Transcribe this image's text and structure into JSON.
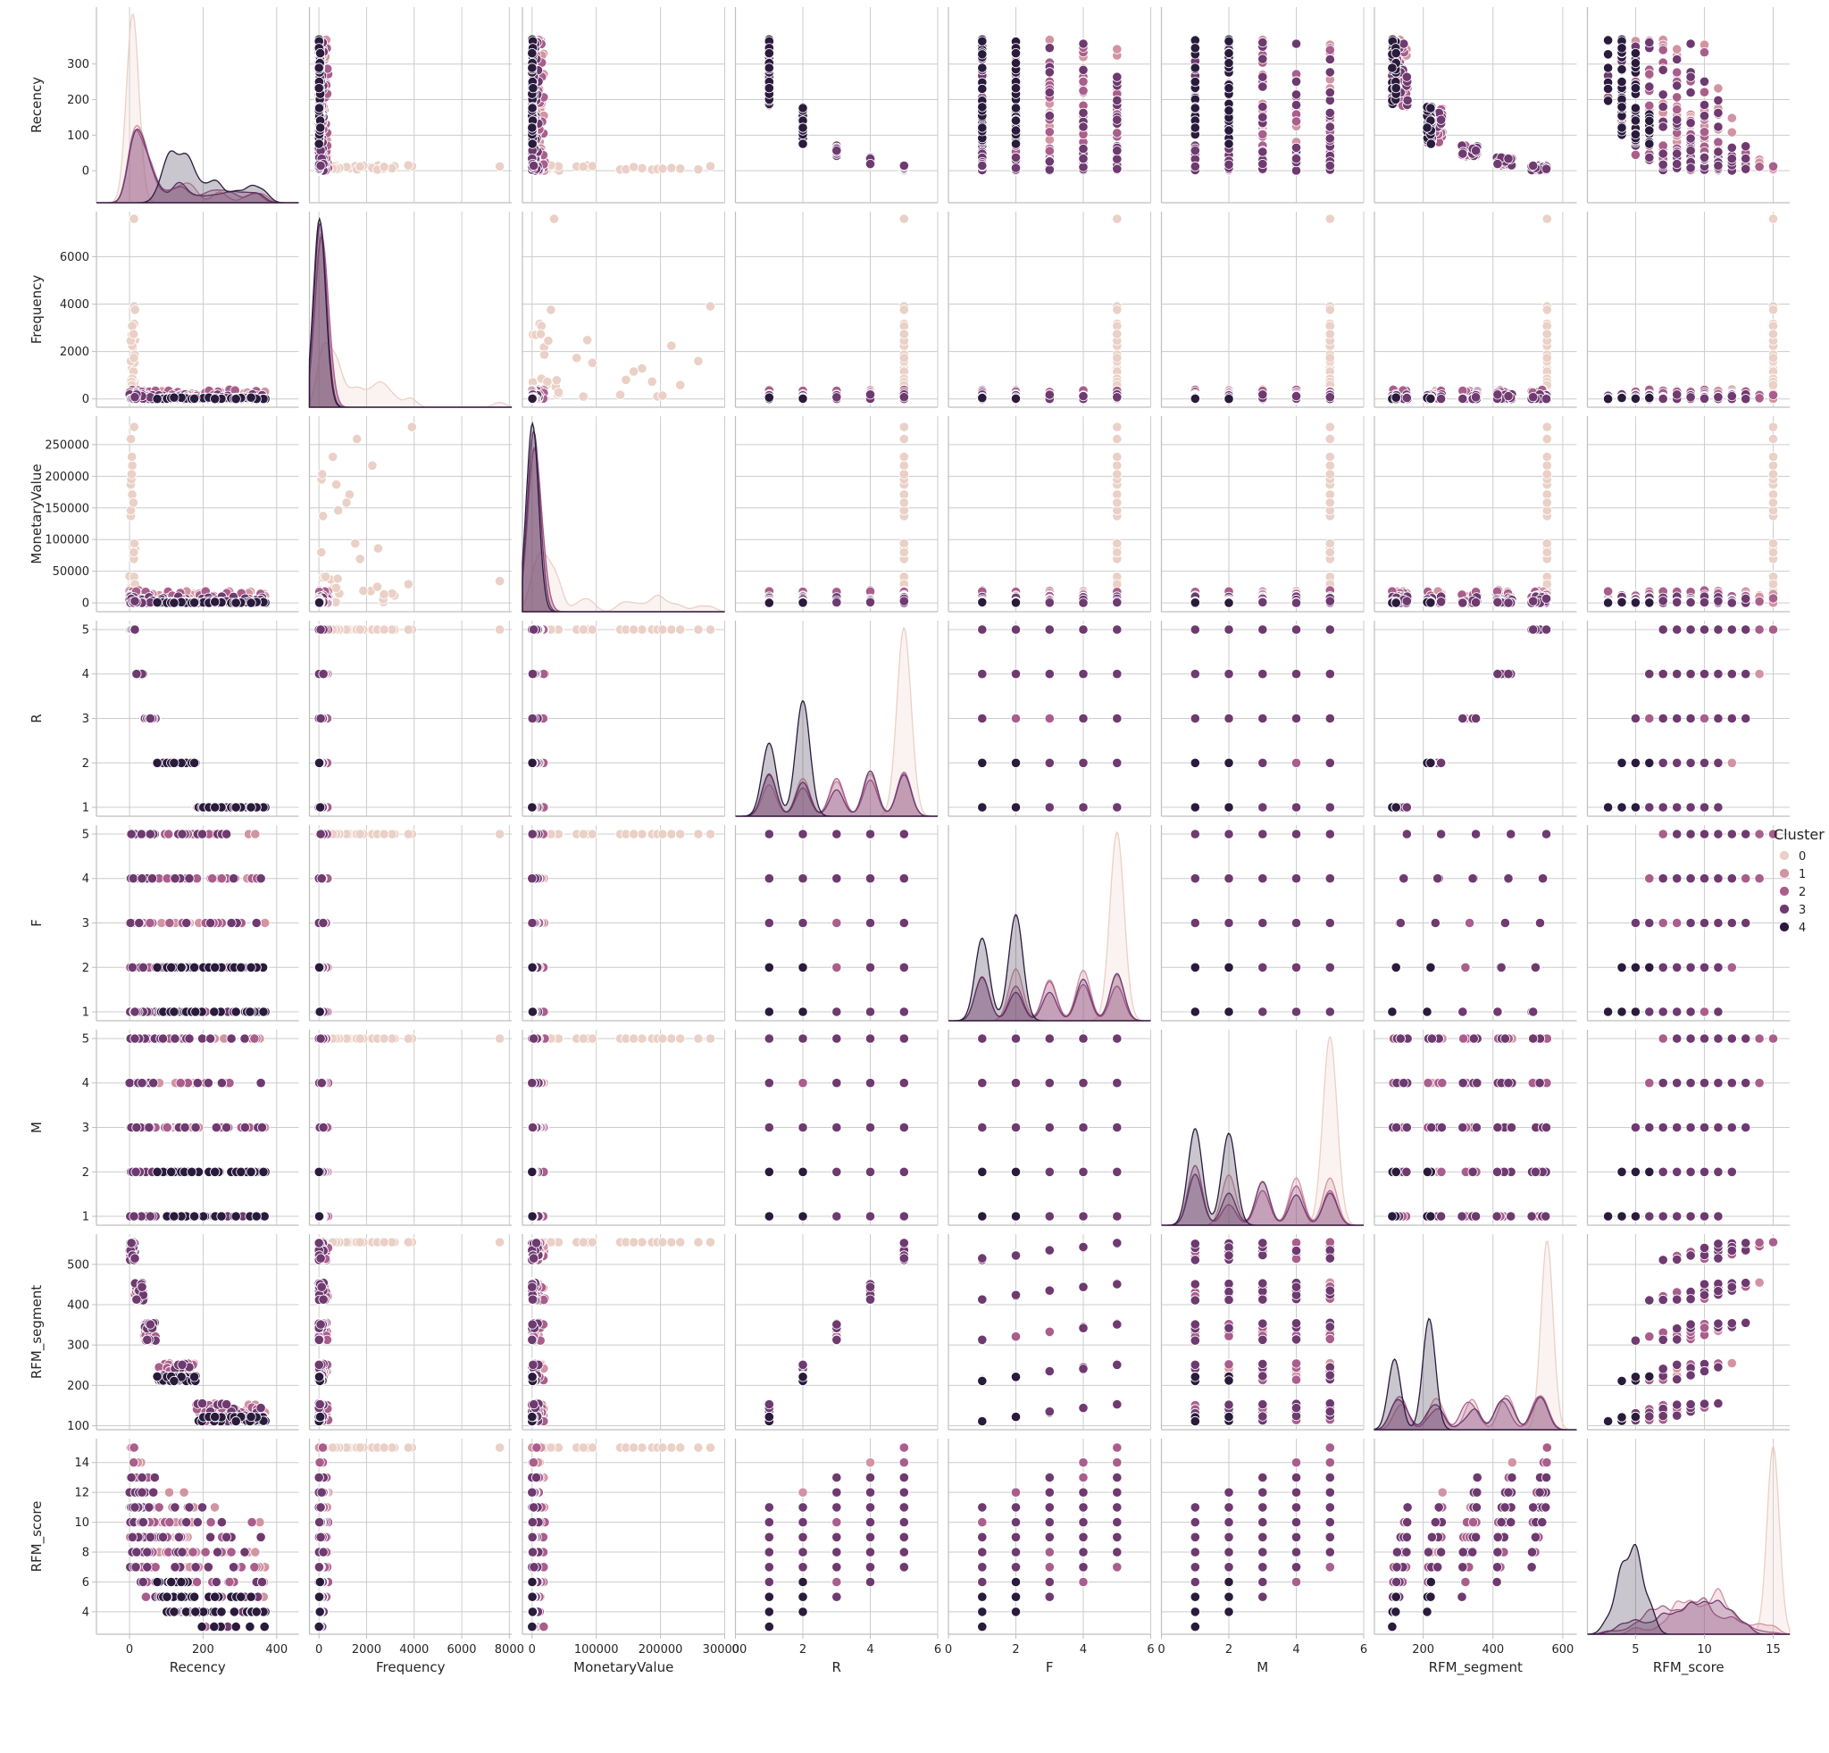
{
  "chart_data": {
    "type": "scatter",
    "variables": [
      "Recency",
      "Frequency",
      "MonetaryValue",
      "R",
      "F",
      "M",
      "RFM_segment",
      "RFM_score"
    ],
    "diagonal": "kde",
    "axes": {
      "Recency": {
        "range": [
          -90,
          460
        ],
        "ticks": [
          0,
          100,
          200,
          300
        ],
        "xticks": [
          0,
          200,
          400
        ]
      },
      "Frequency": {
        "range": [
          -350,
          7900
        ],
        "ticks": [
          0,
          2000,
          4000,
          6000,
          8000
        ],
        "xticks": [
          0,
          2000,
          4000,
          6000,
          8000
        ]
      },
      "MonetaryValue": {
        "range": [
          -14000,
          295000
        ],
        "ticks": [
          0,
          50000,
          100000,
          150000,
          200000,
          250000
        ],
        "xticks": [
          0,
          100000,
          200000,
          300000
        ]
      },
      "R": {
        "range": [
          0.8,
          5.2
        ],
        "ticks": [
          1,
          2,
          3,
          4,
          5
        ],
        "xticks": [
          0,
          2,
          4,
          6
        ]
      },
      "F": {
        "range": [
          0.8,
          5.2
        ],
        "ticks": [
          1,
          2,
          3,
          4,
          5
        ],
        "xticks": [
          0,
          2,
          4,
          6
        ]
      },
      "M": {
        "range": [
          0.8,
          5.2
        ],
        "ticks": [
          1,
          2,
          3,
          4,
          5
        ],
        "xticks": [
          0,
          2,
          4,
          6
        ]
      },
      "RFM_segment": {
        "range": [
          90,
          575
        ],
        "ticks": [
          100,
          200,
          300,
          400,
          500
        ],
        "xticks": [
          200,
          400,
          600
        ]
      },
      "RFM_score": {
        "range": [
          2.5,
          15.6
        ],
        "ticks": [
          4,
          6,
          8,
          10,
          12,
          14
        ],
        "xticks": [
          5,
          10,
          15
        ]
      }
    },
    "xlim": {
      "Recency": [
        -90,
        460
      ],
      "Frequency": [
        -400,
        8100
      ],
      "MonetaryValue": [
        -15000,
        300000
      ],
      "R": [
        0,
        6
      ],
      "F": [
        0,
        6
      ],
      "M": [
        0,
        6
      ],
      "RFM_segment": [
        60,
        640
      ],
      "RFM_score": [
        1.5,
        16.2
      ]
    },
    "legend": {
      "title": "Cluster",
      "labels": [
        "0",
        "1",
        "2",
        "3",
        "4"
      ],
      "position": "right"
    },
    "hue_colors": [
      "#ead0c6",
      "#d294a2",
      "#a95e8c",
      "#6e3a70",
      "#2a1b3d"
    ],
    "grid": true,
    "clusters": [
      {
        "name": "0",
        "n": 40,
        "recency": [
          0,
          60
        ],
        "frequency": [
          100,
          7700
        ],
        "monetary": [
          1000,
          280000
        ],
        "R": [
          5
        ],
        "F": [
          5
        ],
        "M": [
          5
        ],
        "segment": [
          555
        ],
        "score": [
          14,
          15
        ]
      },
      {
        "name": "1",
        "n": 120,
        "recency": [
          0,
          370
        ],
        "frequency": [
          0,
          400
        ],
        "monetary": [
          0,
          20000
        ],
        "R": [
          1,
          2,
          3,
          4,
          5
        ],
        "F": [
          2,
          3,
          4,
          5
        ],
        "M": [
          2,
          3,
          4,
          5
        ],
        "segment": [
          120,
          550
        ],
        "score": [
          5,
          13
        ]
      },
      {
        "name": "2",
        "n": 120,
        "recency": [
          0,
          370
        ],
        "frequency": [
          0,
          400
        ],
        "monetary": [
          0,
          20000
        ],
        "R": [
          1,
          2,
          3,
          4,
          5
        ],
        "F": [
          1,
          2,
          3,
          4,
          5
        ],
        "M": [
          1,
          2,
          3,
          4,
          5
        ],
        "segment": [
          110,
          555
        ],
        "score": [
          4,
          12
        ]
      },
      {
        "name": "3",
        "n": 100,
        "recency": [
          0,
          370
        ],
        "frequency": [
          0,
          200
        ],
        "monetary": [
          0,
          10000
        ],
        "R": [
          1,
          2,
          3,
          4,
          5
        ],
        "F": [
          1,
          2,
          3,
          4,
          5
        ],
        "M": [
          1,
          2,
          3,
          4,
          5
        ],
        "segment": [
          110,
          550
        ],
        "score": [
          3,
          11
        ]
      },
      {
        "name": "4",
        "n": 80,
        "recency": [
          80,
          370
        ],
        "frequency": [
          0,
          60
        ],
        "monetary": [
          0,
          2000
        ],
        "R": [
          1,
          2
        ],
        "F": [
          1,
          2
        ],
        "M": [
          1,
          2
        ],
        "segment": [
          111,
          222
        ],
        "score": [
          3,
          5
        ]
      }
    ]
  }
}
